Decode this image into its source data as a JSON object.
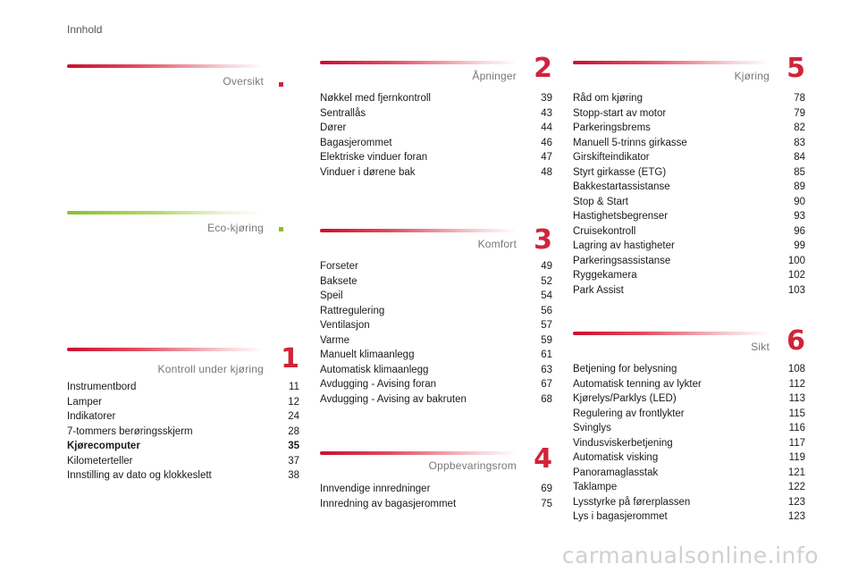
{
  "header": {
    "title": "Innhold"
  },
  "sections": {
    "oversikt": {
      "title": "Oversikt"
    },
    "eco": {
      "title": "Eco-kjøring"
    },
    "s1": {
      "title": "Kontroll under kjøring",
      "number": "1",
      "items": [
        {
          "label": "Instrumentbord",
          "page": "11"
        },
        {
          "label": "Lamper",
          "page": "12"
        },
        {
          "label": "Indikatorer",
          "page": "24"
        },
        {
          "label": "7-tommers berøringsskjerm",
          "page": "28"
        },
        {
          "label": "Kjørecomputer",
          "page": "35"
        },
        {
          "label": "Kilometerteller",
          "page": "37"
        },
        {
          "label": "Innstilling av dato og klokkeslett",
          "page": "38"
        }
      ]
    },
    "s2": {
      "title": "Åpninger",
      "number": "2",
      "items": [
        {
          "label": "Nøkkel med fjernkontroll",
          "page": "39"
        },
        {
          "label": "Sentrallås",
          "page": "43"
        },
        {
          "label": "Dører",
          "page": "44"
        },
        {
          "label": "Bagasjerommet",
          "page": "46"
        },
        {
          "label": "Elektriske vinduer foran",
          "page": "47"
        },
        {
          "label": "Vinduer i dørene bak",
          "page": "48"
        }
      ]
    },
    "s3": {
      "title": "Komfort",
      "number": "3",
      "items": [
        {
          "label": "Forseter",
          "page": "49"
        },
        {
          "label": "Baksete",
          "page": "52"
        },
        {
          "label": "Speil",
          "page": "54"
        },
        {
          "label": "Rattregulering",
          "page": "56"
        },
        {
          "label": "Ventilasjon",
          "page": "57"
        },
        {
          "label": "Varme",
          "page": "59"
        },
        {
          "label": "Manuelt klimaanlegg",
          "page": "61"
        },
        {
          "label": "Automatisk klimaanlegg",
          "page": "63"
        },
        {
          "label": "Avdugging - Avising foran",
          "page": "67"
        },
        {
          "label": "Avdugging - Avising av bakruten",
          "page": "68"
        }
      ]
    },
    "s4": {
      "title": "Oppbevaringsrom",
      "number": "4",
      "items": [
        {
          "label": "Innvendige innredninger",
          "page": "69"
        },
        {
          "label": "Innredning av bagasjerommet",
          "page": "75"
        }
      ]
    },
    "s5": {
      "title": "Kjøring",
      "number": "5",
      "items": [
        {
          "label": "Råd om kjøring",
          "page": "78"
        },
        {
          "label": "Stopp-start av motor",
          "page": "79"
        },
        {
          "label": "Parkeringsbrems",
          "page": "82"
        },
        {
          "label": "Manuell 5-trinns girkasse",
          "page": "83"
        },
        {
          "label": "Girskifteindikator",
          "page": "84"
        },
        {
          "label": "Styrt girkasse (ETG)",
          "page": "85"
        },
        {
          "label": "Bakkestartassistanse",
          "page": "89"
        },
        {
          "label": "Stop & Start",
          "page": "90"
        },
        {
          "label": "Hastighetsbegrenser",
          "page": "93"
        },
        {
          "label": "Cruisekontroll",
          "page": "96"
        },
        {
          "label": "Lagring av hastigheter",
          "page": "99"
        },
        {
          "label": "Parkeringsassistanse",
          "page": "100"
        },
        {
          "label": "Ryggekamera",
          "page": "102"
        },
        {
          "label": "Park Assist",
          "page": "103"
        }
      ]
    },
    "s6": {
      "title": "Sikt",
      "number": "6",
      "items": [
        {
          "label": "Betjening for belysning",
          "page": "108"
        },
        {
          "label": "Automatisk tenning av lykter",
          "page": "112"
        },
        {
          "label": "Kjørelys/Parklys (LED)",
          "page": "113"
        },
        {
          "label": "Regulering av frontlykter",
          "page": "115"
        },
        {
          "label": "Svinglys",
          "page": "116"
        },
        {
          "label": "Vindusviskerbetjening",
          "page": "117"
        },
        {
          "label": "Automatisk visking",
          "page": "119"
        },
        {
          "label": "Panoramaglasstak",
          "page": "121"
        },
        {
          "label": "Taklampe",
          "page": "122"
        },
        {
          "label": "Lysstyrke på førerplassen",
          "page": "123"
        },
        {
          "label": "Lys i bagasjerommet",
          "page": "123"
        }
      ]
    }
  },
  "watermark": "carmanualsonline.info"
}
